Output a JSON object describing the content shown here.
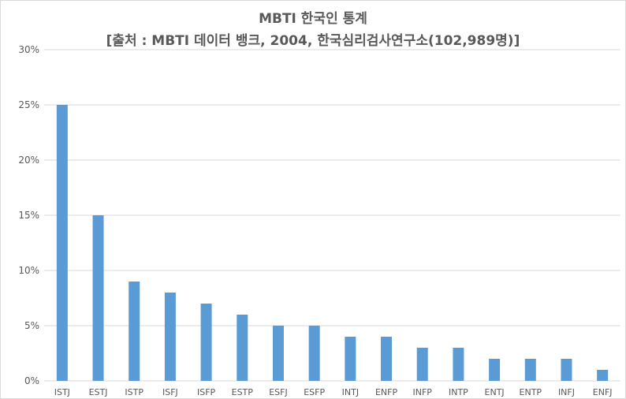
{
  "chart_data": {
    "type": "bar",
    "title_lines": [
      "MBTI 한국인 통계",
      "[출처 : MBTI 데이터 뱅크, 2004, 한국심리검사연구소(102,989명)]"
    ],
    "categories": [
      "ISTJ",
      "ESTJ",
      "ISTP",
      "ISFJ",
      "ISFP",
      "ESTP",
      "ESFJ",
      "ESFP",
      "INTJ",
      "ENFP",
      "INFP",
      "INTP",
      "ENTJ",
      "ENTP",
      "INFJ",
      "ENFJ"
    ],
    "values": [
      25,
      15,
      9,
      8,
      7,
      6,
      5,
      5,
      4,
      4,
      3,
      3,
      2,
      2,
      2,
      1
    ],
    "y_ticks": [
      0,
      5,
      10,
      15,
      20,
      25,
      30
    ],
    "y_tick_labels": [
      "0%",
      "5%",
      "10%",
      "15%",
      "20%",
      "25%",
      "30%"
    ],
    "ylim": [
      0,
      30
    ],
    "grid": true,
    "legend": "none",
    "bar_color": "#5b9bd5",
    "grid_color": "#d9d9d9",
    "text_color": "#595959"
  }
}
